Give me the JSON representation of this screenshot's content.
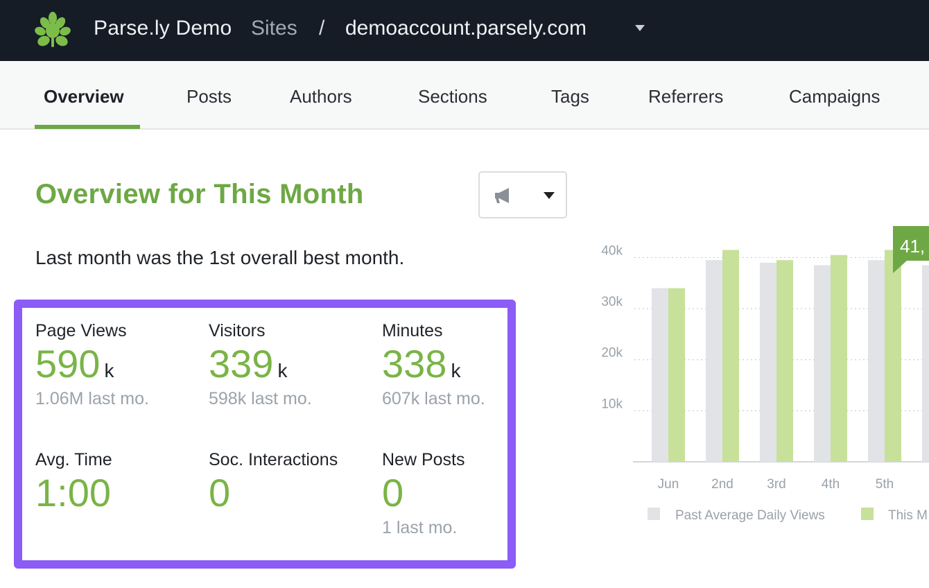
{
  "header": {
    "brand": "Parse.ly Demo",
    "sites_label": "Sites",
    "separator": "/",
    "domain": "demoaccount.parsely.com"
  },
  "tabs": [
    {
      "label": "Overview",
      "active": true
    },
    {
      "label": "Posts"
    },
    {
      "label": "Authors"
    },
    {
      "label": "Sections"
    },
    {
      "label": "Tags"
    },
    {
      "label": "Referrers"
    },
    {
      "label": "Campaigns"
    }
  ],
  "main": {
    "title": "Overview for This Month",
    "alert_icon": "megaphone-icon",
    "best_month_text": "Last month was the 1st overall best month."
  },
  "metrics": [
    {
      "label": "Page Views",
      "value": "590",
      "unit": "k",
      "sub": "1.06M last mo."
    },
    {
      "label": "Visitors",
      "value": "339",
      "unit": "k",
      "sub": "598k last mo."
    },
    {
      "label": "Minutes",
      "value": "338",
      "unit": "k",
      "sub": "607k last mo."
    },
    {
      "label": "Avg. Time",
      "value": "1:00",
      "unit": "",
      "sub": ""
    },
    {
      "label": "Soc. Interactions",
      "value": "0",
      "unit": "",
      "sub": ""
    },
    {
      "label": "New Posts",
      "value": "0",
      "unit": "",
      "sub": "1 last mo."
    }
  ],
  "colors": {
    "accent_green": "#6ea845",
    "highlight_border": "#8b5cf6",
    "past_bar": "#e2e3e7",
    "this_month_bar": "#c7e19a",
    "tooltip": "#6ea845"
  },
  "chart_data": {
    "type": "bar",
    "categories": [
      "Jun",
      "2nd",
      "3rd",
      "4th",
      "5th"
    ],
    "series": [
      {
        "name": "Past Average Daily Views",
        "values": [
          34000,
          39500,
          39000,
          38500,
          39500
        ]
      },
      {
        "name": "This M",
        "values": [
          34000,
          41500,
          39500,
          40500,
          41500
        ]
      }
    ],
    "yticks": [
      10000,
      20000,
      30000,
      40000
    ],
    "ytick_labels": [
      "10k",
      "20k",
      "30k",
      "40k"
    ],
    "ylim": [
      0,
      44000
    ],
    "tooltip": "41,",
    "grid": true,
    "legend_position": "bottom"
  }
}
